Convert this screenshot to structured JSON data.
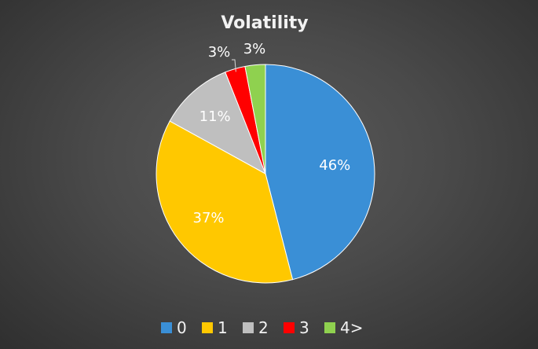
{
  "chart_data": {
    "type": "pie",
    "title": "Volatility",
    "categories": [
      "0",
      "1",
      "2",
      "3",
      "4>"
    ],
    "values": [
      46,
      37,
      11,
      3,
      3
    ],
    "labels": [
      "46%",
      "37%",
      "11%",
      "3%",
      "3%"
    ],
    "colors": [
      "#3a8fd6",
      "#ffc800",
      "#bfbfbf",
      "#ff0000",
      "#8fd14f"
    ],
    "legend_position": "bottom",
    "start_angle_deg": 0,
    "direction": "clockwise"
  },
  "colors": {
    "background": "#4a4a4a",
    "text": "#f2f2f2"
  }
}
